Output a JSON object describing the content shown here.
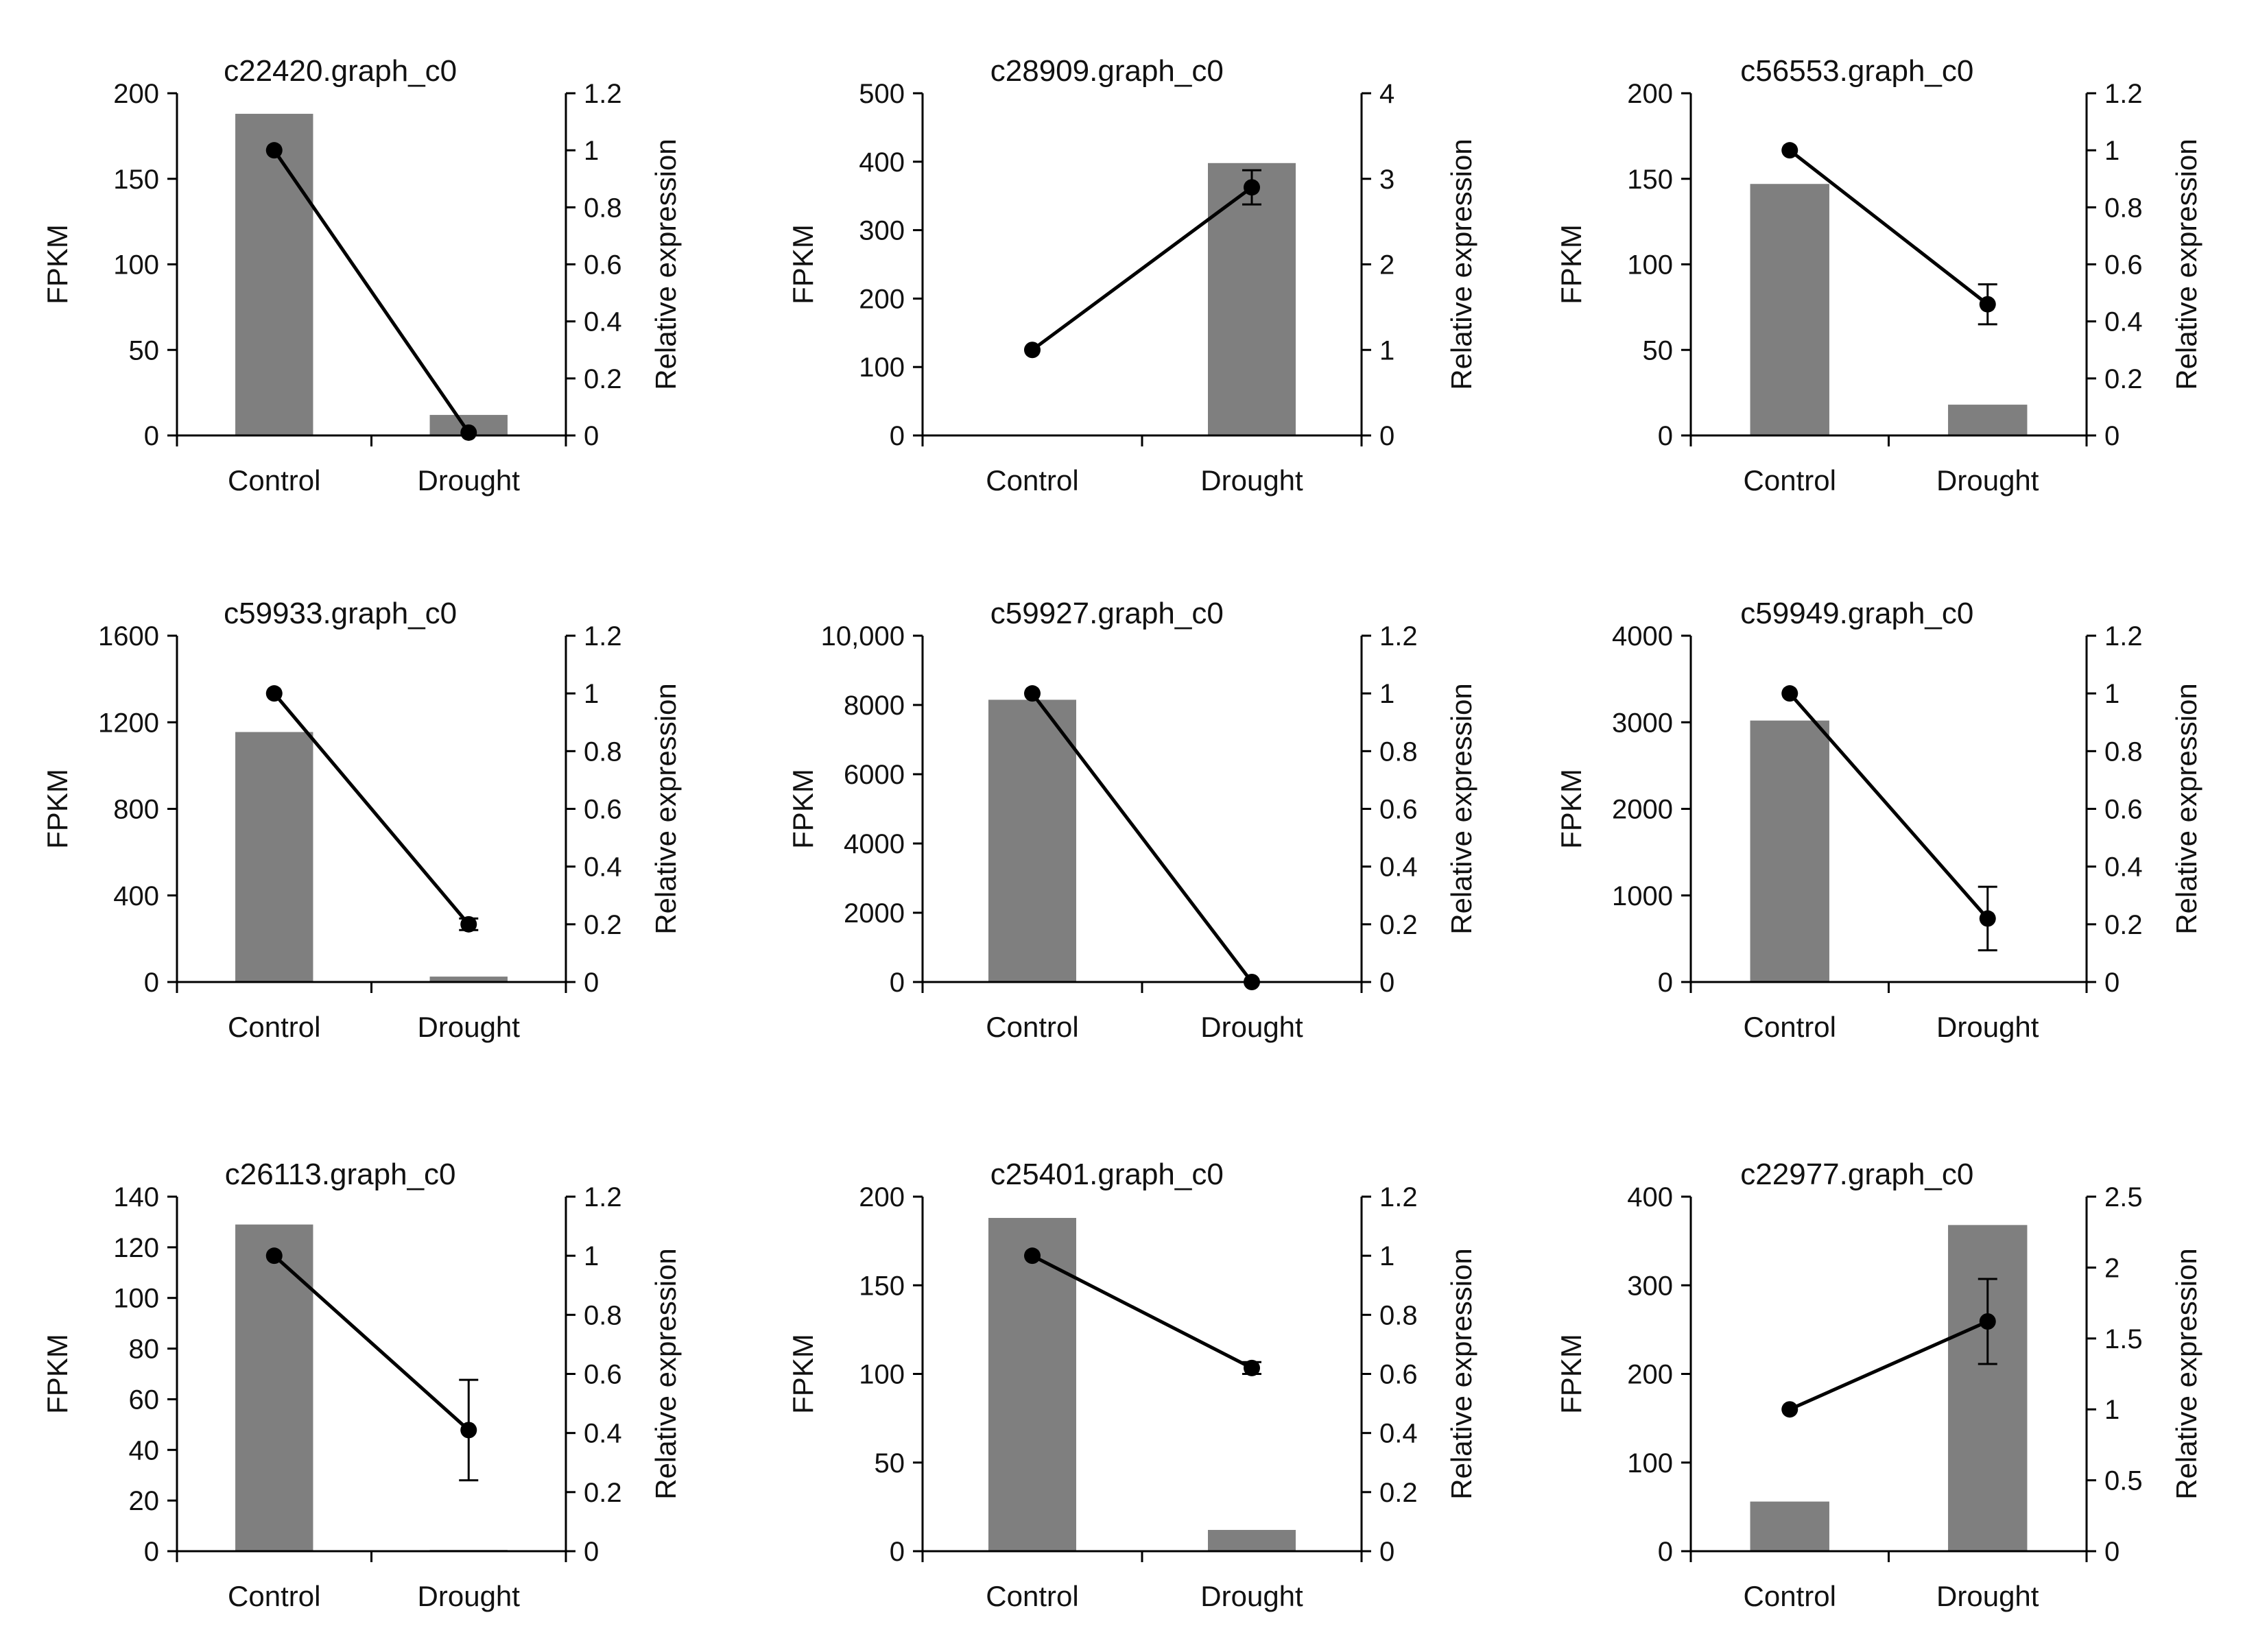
{
  "colors": {
    "bar": "#7f7f7f",
    "line": "#000000",
    "axis": "#000000"
  },
  "chart_data": [
    {
      "type": "bar",
      "title": "c22420.graph_c0",
      "categories": [
        "Control",
        "Drought"
      ],
      "ylabel": "FPKM",
      "y2label": "Relative expression",
      "ylim": [
        0,
        200
      ],
      "yticks": [
        "0",
        "50",
        "100",
        "150",
        "200"
      ],
      "y2lim": [
        0,
        1.2
      ],
      "y2ticks": [
        "0",
        "0.2",
        "0.4",
        "0.6",
        "0.8",
        "1",
        "1.2"
      ],
      "bars": [
        188,
        12
      ],
      "line": [
        1.0,
        0.01
      ],
      "errors": [
        0,
        0
      ]
    },
    {
      "type": "bar",
      "title": "c28909.graph_c0",
      "categories": [
        "Control",
        "Drought"
      ],
      "ylabel": "FPKM",
      "y2label": "Relative expression",
      "ylim": [
        0,
        500
      ],
      "yticks": [
        "0",
        "100",
        "200",
        "300",
        "400",
        "500"
      ],
      "y2lim": [
        0,
        4
      ],
      "y2ticks": [
        "0",
        "1",
        "2",
        "3",
        "4"
      ],
      "bars": [
        0,
        398
      ],
      "line": [
        1.0,
        2.9
      ],
      "errors": [
        0,
        0.2
      ]
    },
    {
      "type": "bar",
      "title": "c56553.graph_c0",
      "categories": [
        "Control",
        "Drought"
      ],
      "ylabel": "FPKM",
      "y2label": "Relative expression",
      "ylim": [
        0,
        200
      ],
      "yticks": [
        "0",
        "50",
        "100",
        "150",
        "200"
      ],
      "y2lim": [
        0,
        1.2
      ],
      "y2ticks": [
        "0",
        "0.2",
        "0.4",
        "0.6",
        "0.8",
        "1",
        "1.2"
      ],
      "bars": [
        147,
        18
      ],
      "line": [
        1.0,
        0.46
      ],
      "errors": [
        0,
        0.07
      ]
    },
    {
      "type": "bar",
      "title": "c59933.graph_c0",
      "categories": [
        "Control",
        "Drought"
      ],
      "ylabel": "FPKM",
      "y2label": "Relative expression",
      "ylim": [
        0,
        1600
      ],
      "yticks": [
        "0",
        "400",
        "800",
        "1200",
        "1600"
      ],
      "y2lim": [
        0,
        1.2
      ],
      "y2ticks": [
        "0",
        "0.2",
        "0.4",
        "0.6",
        "0.8",
        "1",
        "1.2"
      ],
      "bars": [
        1155,
        25
      ],
      "line": [
        1.0,
        0.2
      ],
      "errors": [
        0,
        0.02
      ]
    },
    {
      "type": "bar",
      "title": "c59927.graph_c0",
      "categories": [
        "Control",
        "Drought"
      ],
      "ylabel": "FPKM",
      "y2label": "Relative expression",
      "ylim": [
        0,
        10000
      ],
      "yticks": [
        "0",
        "2000",
        "4000",
        "6000",
        "8000",
        "10,000"
      ],
      "y2lim": [
        0,
        1.2
      ],
      "y2ticks": [
        "0",
        "0.2",
        "0.4",
        "0.6",
        "0.8",
        "1",
        "1.2"
      ],
      "bars": [
        8150,
        0
      ],
      "line": [
        1.0,
        0.0
      ],
      "errors": [
        0,
        0
      ]
    },
    {
      "type": "bar",
      "title": "c59949.graph_c0",
      "categories": [
        "Control",
        "Drought"
      ],
      "ylabel": "FPKM",
      "y2label": "Relative expression",
      "ylim": [
        0,
        4000
      ],
      "yticks": [
        "0",
        "1000",
        "2000",
        "3000",
        "4000"
      ],
      "y2lim": [
        0,
        1.2
      ],
      "y2ticks": [
        "0",
        "0.2",
        "0.4",
        "0.6",
        "0.8",
        "1",
        "1.2"
      ],
      "bars": [
        3020,
        0
      ],
      "line": [
        1.0,
        0.22
      ],
      "errors": [
        0,
        0.11
      ]
    },
    {
      "type": "bar",
      "title": "c26113.graph_c0",
      "categories": [
        "Control",
        "Drought"
      ],
      "ylabel": "FPKM",
      "y2label": "Relative expression",
      "ylim": [
        0,
        140
      ],
      "yticks": [
        "0",
        "20",
        "40",
        "60",
        "80",
        "100",
        "120",
        "140"
      ],
      "y2lim": [
        0,
        1.2
      ],
      "y2ticks": [
        "0",
        "0.2",
        "0.4",
        "0.6",
        "0.8",
        "1",
        "1.2"
      ],
      "bars": [
        129,
        0.5
      ],
      "line": [
        1.0,
        0.41
      ],
      "errors": [
        0,
        0.17
      ]
    },
    {
      "type": "bar",
      "title": "c25401.graph_c0",
      "categories": [
        "Control",
        "Drought"
      ],
      "ylabel": "FPKM",
      "y2label": "Relative expression",
      "ylim": [
        0,
        200
      ],
      "yticks": [
        "0",
        "50",
        "100",
        "150",
        "200"
      ],
      "y2lim": [
        0,
        1.2
      ],
      "y2ticks": [
        "0",
        "0.2",
        "0.4",
        "0.6",
        "0.8",
        "1",
        "1.2"
      ],
      "bars": [
        188,
        12
      ],
      "line": [
        1.0,
        0.62
      ],
      "errors": [
        0,
        0.02
      ]
    },
    {
      "type": "bar",
      "title": "c22977.graph_c0",
      "categories": [
        "Control",
        "Drought"
      ],
      "ylabel": "FPKM",
      "y2label": "Relative expression",
      "ylim": [
        0,
        400
      ],
      "yticks": [
        "0",
        "100",
        "200",
        "300",
        "400"
      ],
      "y2lim": [
        0,
        2.5
      ],
      "y2ticks": [
        "0",
        "0.5",
        "1",
        "1.5",
        "2",
        "2.5"
      ],
      "bars": [
        56,
        368
      ],
      "line": [
        1.0,
        1.62
      ],
      "errors": [
        0,
        0.3
      ]
    }
  ]
}
